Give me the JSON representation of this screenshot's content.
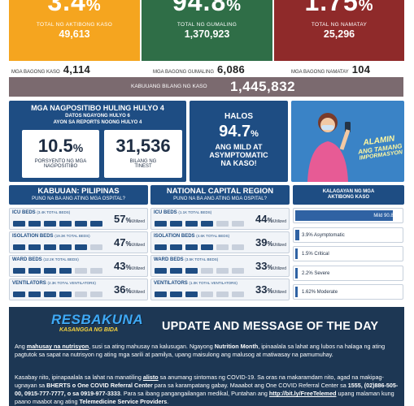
{
  "top_stats": [
    {
      "value": "3.4",
      "unit": "%",
      "label": "TOTAL NG AKTIBONG KASO",
      "count": "49,613",
      "color": "#f5a51f"
    },
    {
      "value": "94.8",
      "unit": "%",
      "label": "TOTAL NG GUMALING",
      "count": "1,370,923",
      "color": "#2f6e47"
    },
    {
      "value": "1.75",
      "unit": "%",
      "label": "TOTAL NG NAMATAY",
      "count": "25,296",
      "color": "#8f2a2a"
    }
  ],
  "new_counts": {
    "cases_label": "MGA BAGONG KASO",
    "cases": "4,114",
    "recovered_label": "MGA BAGONG GUMALING",
    "recovered": "6,086",
    "deaths_label": "MGA BAGONG NAMATAY",
    "deaths": "104"
  },
  "total": {
    "label": "KABUUANG BILANG NG KASO",
    "value": "1,445,832"
  },
  "positivity": {
    "title": "MGA NAGPOSITIBO HULING HULYO 4",
    "sub1": "DATOS NGAYONG HULYO 6",
    "sub2": "AYON SA REPORTS NOONG HULYO 4",
    "rate": "10.5",
    "rate_unit": "%",
    "rate_label1": "PORSYENTO NG MGA",
    "rate_label2": "NAGPOSITIBO",
    "tested": "31,536",
    "tested_label1": "BILANG NG",
    "tested_label2": "TINEST"
  },
  "mild": {
    "halos": "HALOS",
    "value": "94.7",
    "unit": "%",
    "line1": "ANG MILD AT",
    "line2": "ASYMPTOMATIC",
    "line3": "NA KASO!"
  },
  "promo": {
    "line1": "ALAMIN",
    "line2": "ANG TAMANG",
    "line3": "IMPORMASYON"
  },
  "ph": {
    "title": "KABUUAN: PILIPINAS",
    "subtitle": "PUNO NA BA ANG ATING MGA OSPITAL?",
    "rows": [
      {
        "label": "ICU BEDS",
        "total": "(3.4K TOTAL BEDS)",
        "value": "57",
        "filled": 6
      },
      {
        "label": "ISOLATION BEDS",
        "total": "(19.3K TOTAL BEDS)",
        "value": "47",
        "filled": 5
      },
      {
        "label": "WARD BEDS",
        "total": "(12.2K TOTAL BEDS)",
        "value": "43",
        "filled": 4
      },
      {
        "label": "VENTILATORS",
        "total": "(2.3K TOTAL VENTILATORS)",
        "value": "36",
        "filled": 4
      }
    ]
  },
  "ncr": {
    "title": "NATIONAL CAPITAL REGION",
    "subtitle": "PUNO NA BA ANG ATING MGA OSPITAL?",
    "rows": [
      {
        "label": "ICU BEDS",
        "total": "(1.1K TOTAL BEDS)",
        "value": "44",
        "filled": 4
      },
      {
        "label": "ISOLATION BEDS",
        "total": "(4.6K TOTAL BEDS)",
        "value": "39",
        "filled": 4
      },
      {
        "label": "WARD BEDS",
        "total": "(3.5K TOTAL BEDS)",
        "value": "33",
        "filled": 3
      },
      {
        "label": "VENTILATORS",
        "total": "(1.0K TOTAL VENTILATORS)",
        "value": "33",
        "filled": 3
      }
    ]
  },
  "percent_sign": "%",
  "utilized": "Utilized",
  "severity": {
    "title": "KALAGAYAN NG MGA",
    "subtitle": "AKTIBONG KASO",
    "rows": [
      {
        "label": "Mild 90.8%",
        "fraction": 0.908
      },
      {
        "label": "3.9% Asymptomatic",
        "fraction": 0.039
      },
      {
        "label": "1.5% Critical",
        "fraction": 0.015
      },
      {
        "label": "2.2% Severe",
        "fraction": 0.022
      },
      {
        "label": "1.62% Moderate",
        "fraction": 0.0162
      }
    ]
  },
  "message": {
    "logo1": "RESBAKUNA",
    "logo2": "KASANGGA NG BIDA",
    "heading": "UPDATE AND MESSAGE OF THE DAY",
    "p1a": "Ang ",
    "p1b": "mahusay na nutrisyon",
    "p1c": ", susi sa ating mahusay na kalusugan. Ngayong ",
    "p1d": "Nutrition Month",
    "p1e": ", ipinaalala sa lahat ang lubos na halaga ng ating pagtutok sa sapat na nutrisyon ng ating mga sarili at pamilya, upang maisulong ang malusog at matiwasay na pamumuhay.",
    "p2a": "Kasabay nito, ipinapaalala sa lahat na manatiling ",
    "p2b": "alisto",
    "p2c": " sa anumang sintomas ng COVID-19. Sa oras na makaramdam nito, agad na makipag-ugnayan sa ",
    "p2d": "BHERTS o One COVID Referral Center",
    "p2e": " para sa karampatang gabay. Maaabot ang One COVID Referral Center sa ",
    "p2f": "1555, (02)886-505-00, 0915-777-7777, o sa 0919-977-3333",
    "p2g": ". Para sa ibang pangangailangan medikal, Puntahan ang ",
    "p2h": "http://bit.ly/FreeTelemed",
    "p2i": " upang malaman kung paano maabot ang ating ",
    "p2j": "Telemedicine Service Providers",
    "p2k": "."
  }
}
